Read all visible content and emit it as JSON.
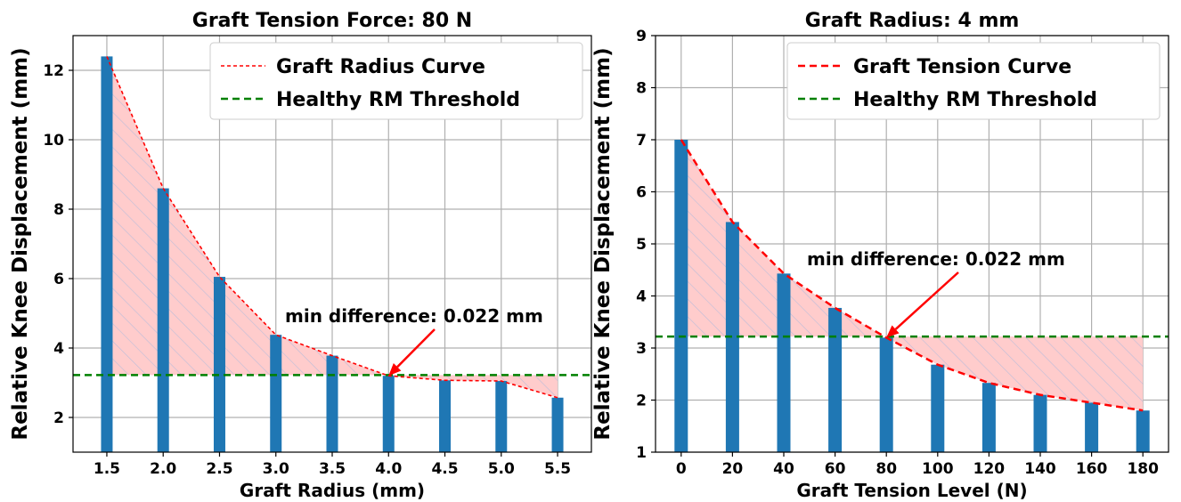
{
  "chart_data": [
    {
      "type": "bar",
      "title": "Graft Tension Force: 80 N",
      "xlabel": "Graft Radius (mm)",
      "ylabel": "Relative Knee Displacement (mm)",
      "categories": [
        "1.5",
        "2.0",
        "2.5",
        "3.0",
        "3.5",
        "4.0",
        "4.5",
        "5.0",
        "5.5"
      ],
      "x": [
        1.5,
        2.0,
        2.5,
        3.0,
        3.5,
        4.0,
        4.5,
        5.0,
        5.5
      ],
      "values": [
        12.4,
        8.6,
        6.05,
        4.38,
        3.78,
        3.2,
        3.07,
        3.05,
        2.57
      ],
      "xlim": [
        1.2,
        5.8
      ],
      "ylim": [
        1.0,
        13.0
      ],
      "yticks": [
        2,
        4,
        6,
        8,
        10,
        12
      ],
      "threshold": 3.22,
      "series": [
        {
          "name": "Graft Radius Curve",
          "style": "dashed",
          "color": "#ff0000"
        },
        {
          "name": "Healthy RM Threshold",
          "style": "dashed",
          "color": "#008000"
        }
      ],
      "annotation": {
        "text": "min difference: 0.022 mm",
        "x": 4.0,
        "y": 3.2
      },
      "legend": "top-right",
      "grid": true,
      "bar_color": "#1f77b4",
      "fill_color": "#ffcccc"
    },
    {
      "type": "bar",
      "title": "Graft Radius: 4 mm",
      "xlabel": "Graft Tension Level (N)",
      "ylabel": "Relative Knee Displacement (mm)",
      "categories": [
        "0",
        "20",
        "40",
        "60",
        "80",
        "100",
        "120",
        "140",
        "160",
        "180"
      ],
      "x": [
        0,
        20,
        40,
        60,
        80,
        100,
        120,
        140,
        160,
        180
      ],
      "values": [
        7.0,
        5.42,
        4.43,
        3.77,
        3.2,
        2.68,
        2.33,
        2.1,
        1.95,
        1.8
      ],
      "xlim": [
        -10,
        190
      ],
      "ylim": [
        1,
        9
      ],
      "yticks": [
        1,
        2,
        3,
        4,
        5,
        6,
        7,
        8,
        9
      ],
      "threshold": 3.22,
      "series": [
        {
          "name": "Graft Tension Curve",
          "style": "dashed",
          "color": "#ff0000"
        },
        {
          "name": "Healthy RM Threshold",
          "style": "dashed",
          "color": "#008000"
        }
      ],
      "annotation": {
        "text": "min difference: 0.022 mm",
        "x": 80,
        "y": 3.2
      },
      "legend": "top-right",
      "grid": true,
      "bar_color": "#1f77b4",
      "fill_color": "#ffcccc"
    }
  ]
}
